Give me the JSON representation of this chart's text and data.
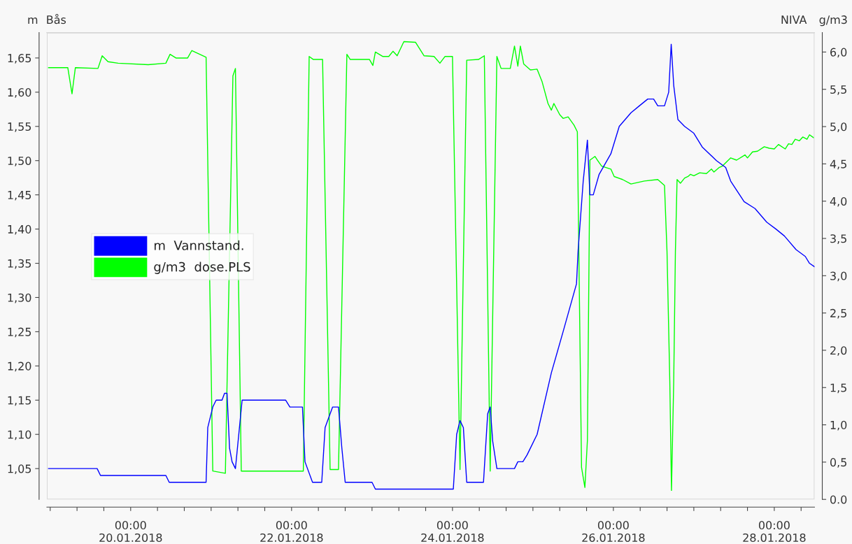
{
  "chart_data": {
    "type": "line",
    "ylabel": "m",
    "y2label": "g/m3",
    "annotations": [
      "Bås",
      "NIVA"
    ],
    "xlim": [
      "2018-01-18T23:00",
      "2018-01-28T12:00"
    ],
    "xticks": [
      {
        "value": "2018-01-19T00:00",
        "label": null
      },
      {
        "value": "2018-01-19T08:00",
        "label": null
      },
      {
        "value": "2018-01-19T16:00",
        "label": null
      },
      {
        "value": "2018-01-20T00:00",
        "label": "00:00\n20.01.2018"
      },
      {
        "value": "2018-01-20T08:00",
        "label": null
      },
      {
        "value": "2018-01-20T16:00",
        "label": null
      },
      {
        "value": "2018-01-21T00:00",
        "label": null
      },
      {
        "value": "2018-01-21T08:00",
        "label": null
      },
      {
        "value": "2018-01-21T16:00",
        "label": null
      },
      {
        "value": "2018-01-22T00:00",
        "label": "00:00\n22.01.2018"
      },
      {
        "value": "2018-01-22T08:00",
        "label": null
      },
      {
        "value": "2018-01-22T16:00",
        "label": null
      },
      {
        "value": "2018-01-23T00:00",
        "label": null
      },
      {
        "value": "2018-01-23T08:00",
        "label": null
      },
      {
        "value": "2018-01-23T16:00",
        "label": null
      },
      {
        "value": "2018-01-24T00:00",
        "label": "00:00\n24.01.2018"
      },
      {
        "value": "2018-01-24T08:00",
        "label": null
      },
      {
        "value": "2018-01-24T16:00",
        "label": null
      },
      {
        "value": "2018-01-25T00:00",
        "label": null
      },
      {
        "value": "2018-01-25T08:00",
        "label": null
      },
      {
        "value": "2018-01-25T16:00",
        "label": null
      },
      {
        "value": "2018-01-26T00:00",
        "label": "00:00\n26.01.2018"
      },
      {
        "value": "2018-01-26T08:00",
        "label": null
      },
      {
        "value": "2018-01-26T16:00",
        "label": null
      },
      {
        "value": "2018-01-27T00:00",
        "label": null
      },
      {
        "value": "2018-01-27T08:00",
        "label": null
      },
      {
        "value": "2018-01-27T16:00",
        "label": null
      },
      {
        "value": "2018-01-28T00:00",
        "label": "00:00\n28.01.2018"
      },
      {
        "value": "2018-01-28T08:00",
        "label": null
      }
    ],
    "ylim": [
      1.005,
      1.687
    ],
    "yticks": [
      {
        "value": 1.05,
        "label": "1,05"
      },
      {
        "value": 1.1,
        "label": "1,10"
      },
      {
        "value": 1.15,
        "label": "1,15"
      },
      {
        "value": 1.2,
        "label": "1,20"
      },
      {
        "value": 1.25,
        "label": "1,25"
      },
      {
        "value": 1.3,
        "label": "1,30"
      },
      {
        "value": 1.35,
        "label": "1,35"
      },
      {
        "value": 1.4,
        "label": "1,40"
      },
      {
        "value": 1.45,
        "label": "1,45"
      },
      {
        "value": 1.5,
        "label": "1,50"
      },
      {
        "value": 1.55,
        "label": "1,55"
      },
      {
        "value": 1.6,
        "label": "1,60"
      },
      {
        "value": 1.65,
        "label": "1,65"
      }
    ],
    "y2lim": [
      0,
      6.26
    ],
    "y2ticks": [
      {
        "value": 0,
        "label": "0.0"
      },
      {
        "value": 0.5,
        "label": "0,5"
      },
      {
        "value": 1.0,
        "label": "1,0"
      },
      {
        "value": 1.5,
        "label": "1,5"
      },
      {
        "value": 2.0,
        "label": "2,0"
      },
      {
        "value": 2.5,
        "label": "2,5"
      },
      {
        "value": 3.0,
        "label": "3,0"
      },
      {
        "value": 3.5,
        "label": "3,5"
      },
      {
        "value": 4.0,
        "label": "4,0"
      },
      {
        "value": 4.5,
        "label": "4,5"
      },
      {
        "value": 5.0,
        "label": "5,0"
      },
      {
        "value": 5.5,
        "label": "5,5"
      },
      {
        "value": 6.0,
        "label": "6,0"
      }
    ],
    "grid": false,
    "legend": "left",
    "marker": "none",
    "line_style": "solid",
    "series": [
      {
        "name": "m  Vannstand.",
        "color": "#0000ff",
        "axis": "y",
        "x": [
          "2018-01-18T23:30",
          "2018-01-19T14:00",
          "2018-01-19T15:00",
          "2018-01-20T10:30",
          "2018-01-20T11:30",
          "2018-01-20T22:30",
          "2018-01-20T23:00",
          "2018-01-21T00:30",
          "2018-01-21T01:30",
          "2018-01-21T03:15",
          "2018-01-21T04:00",
          "2018-01-21T04:45",
          "2018-01-21T05:30",
          "2018-01-21T06:15",
          "2018-01-21T07:15",
          "2018-01-21T08:15",
          "2018-01-21T09:15",
          "2018-01-21T22:15",
          "2018-01-21T23:30",
          "2018-01-22T03:15",
          "2018-01-22T04:00",
          "2018-01-22T06:15",
          "2018-01-22T09:00",
          "2018-01-22T10:00",
          "2018-01-22T11:30",
          "2018-01-22T12:15",
          "2018-01-22T14:00",
          "2018-01-22T15:00",
          "2018-01-22T16:00",
          "2018-01-23T00:00",
          "2018-01-23T01:00",
          "2018-01-24T00:15",
          "2018-01-24T01:15",
          "2018-01-24T02:15",
          "2018-01-24T03:15",
          "2018-01-24T04:15",
          "2018-01-24T09:15",
          "2018-01-24T10:30",
          "2018-01-24T11:15",
          "2018-01-24T12:00",
          "2018-01-24T13:15",
          "2018-01-24T18:30",
          "2018-01-24T19:30",
          "2018-01-24T21:00",
          "2018-01-24T22:15",
          "2018-01-25T01:15",
          "2018-01-25T05:30",
          "2018-01-25T09:00",
          "2018-01-25T13:00",
          "2018-01-25T13:30",
          "2018-01-25T15:00",
          "2018-01-25T16:15",
          "2018-01-25T17:00",
          "2018-01-25T18:00",
          "2018-01-25T19:45",
          "2018-01-25T23:15",
          "2018-01-26T01:45",
          "2018-01-26T05:15",
          "2018-01-26T07:45",
          "2018-01-26T10:15",
          "2018-01-26T12:00",
          "2018-01-26T13:15",
          "2018-01-26T15:15",
          "2018-01-26T16:30",
          "2018-01-26T17:15",
          "2018-01-26T18:00",
          "2018-01-26T19:15",
          "2018-01-26T21:15",
          "2018-01-27T00:00",
          "2018-01-27T02:30",
          "2018-01-27T06:45",
          "2018-01-27T09:30",
          "2018-01-27T11:00",
          "2018-01-27T15:00",
          "2018-01-27T18:15",
          "2018-01-27T21:45",
          "2018-01-28T00:30",
          "2018-01-28T03:00",
          "2018-01-28T06:30",
          "2018-01-28T09:15",
          "2018-01-28T10:30",
          "2018-01-28T12:00"
        ],
        "values": [
          1.05,
          1.05,
          1.04,
          1.04,
          1.03,
          1.03,
          1.11,
          1.14,
          1.15,
          1.15,
          1.16,
          1.16,
          1.08,
          1.06,
          1.05,
          1.1,
          1.15,
          1.15,
          1.14,
          1.14,
          1.06,
          1.03,
          1.03,
          1.11,
          1.13,
          1.14,
          1.14,
          1.08,
          1.03,
          1.03,
          1.02,
          1.02,
          1.1,
          1.12,
          1.11,
          1.03,
          1.03,
          1.13,
          1.14,
          1.09,
          1.05,
          1.05,
          1.06,
          1.06,
          1.07,
          1.1,
          1.19,
          1.25,
          1.32,
          1.37,
          1.47,
          1.53,
          1.45,
          1.45,
          1.48,
          1.51,
          1.55,
          1.57,
          1.58,
          1.59,
          1.59,
          1.58,
          1.58,
          1.6,
          1.67,
          1.61,
          1.56,
          1.55,
          1.54,
          1.52,
          1.5,
          1.49,
          1.47,
          1.44,
          1.43,
          1.41,
          1.4,
          1.39,
          1.37,
          1.36,
          1.35,
          1.345
        ]
      },
      {
        "name": "g/m3  dose.PLS",
        "color": "#00ff00",
        "axis": "y2",
        "x": [
          "2018-01-18T23:30",
          "2018-01-19T05:15",
          "2018-01-19T06:30",
          "2018-01-19T07:30",
          "2018-01-19T14:15",
          "2018-01-19T15:30",
          "2018-01-19T17:15",
          "2018-01-19T20:15",
          "2018-01-20T05:15",
          "2018-01-20T10:30",
          "2018-01-20T11:45",
          "2018-01-20T13:30",
          "2018-01-20T17:00",
          "2018-01-20T18:15",
          "2018-01-20T22:30",
          "2018-01-21T00:30",
          "2018-01-21T04:15",
          "2018-01-21T06:30",
          "2018-01-21T07:15",
          "2018-01-21T09:00",
          "2018-01-22T03:30",
          "2018-01-22T05:15",
          "2018-01-22T06:30",
          "2018-01-22T09:15",
          "2018-01-22T11:30",
          "2018-01-22T14:00",
          "2018-01-22T16:30",
          "2018-01-22T17:30",
          "2018-01-22T23:15",
          "2018-01-23T00:15",
          "2018-01-23T01:00",
          "2018-01-23T03:15",
          "2018-01-23T05:00",
          "2018-01-23T06:15",
          "2018-01-23T07:30",
          "2018-01-23T09:30",
          "2018-01-23T13:00",
          "2018-01-23T15:30",
          "2018-01-23T18:30",
          "2018-01-23T20:15",
          "2018-01-23T21:45",
          "2018-01-24T00:00",
          "2018-01-24T02:15",
          "2018-01-24T04:15",
          "2018-01-24T07:45",
          "2018-01-24T09:30",
          "2018-01-24T11:15",
          "2018-01-24T13:15",
          "2018-01-24T14:30",
          "2018-01-24T17:15",
          "2018-01-24T18:30",
          "2018-01-24T19:30",
          "2018-01-24T20:15",
          "2018-01-24T21:15",
          "2018-01-24T23:15",
          "2018-01-25T01:15",
          "2018-01-25T02:45",
          "2018-01-25T04:30",
          "2018-01-25T05:30",
          "2018-01-25T06:15",
          "2018-01-25T08:00",
          "2018-01-25T09:00",
          "2018-01-25T10:30",
          "2018-01-25T12:15",
          "2018-01-25T13:15",
          "2018-01-25T14:30",
          "2018-01-25T15:30",
          "2018-01-25T16:15",
          "2018-01-25T17:00",
          "2018-01-25T18:30",
          "2018-01-25T19:15",
          "2018-01-25T20:30",
          "2018-01-25T23:15",
          "2018-01-26T00:15",
          "2018-01-26T02:45",
          "2018-01-26T05:15",
          "2018-01-26T09:15",
          "2018-01-26T13:15",
          "2018-01-26T15:15",
          "2018-01-26T16:00",
          "2018-01-26T16:50",
          "2018-01-26T17:20",
          "2018-01-26T18:00",
          "2018-01-26T18:30",
          "2018-01-26T19:00",
          "2018-01-26T20:00",
          "2018-01-26T21:15",
          "2018-01-26T22:15",
          "2018-01-26T23:00",
          "2018-01-27T00:00",
          "2018-01-27T01:45",
          "2018-01-27T03:45",
          "2018-01-27T05:15",
          "2018-01-27T06:00",
          "2018-01-27T07:30",
          "2018-01-27T08:30",
          "2018-01-27T11:00",
          "2018-01-27T12:45",
          "2018-01-27T15:15",
          "2018-01-27T16:00",
          "2018-01-27T17:30",
          "2018-01-27T19:00",
          "2018-01-27T21:00",
          "2018-01-27T22:30",
          "2018-01-28T00:00",
          "2018-01-28T01:15",
          "2018-01-28T03:15",
          "2018-01-28T04:15",
          "2018-01-28T05:15",
          "2018-01-28T06:15",
          "2018-01-28T07:30",
          "2018-01-28T08:30",
          "2018-01-28T09:45",
          "2018-01-28T10:30",
          "2018-01-28T11:45"
        ],
        "values": [
          5.79,
          5.79,
          5.44,
          5.79,
          5.78,
          5.95,
          5.87,
          5.85,
          5.83,
          5.85,
          5.97,
          5.92,
          5.92,
          6.02,
          5.93,
          0.38,
          0.35,
          5.68,
          5.78,
          0.38,
          0.38,
          5.94,
          5.9,
          5.9,
          0.4,
          0.4,
          5.97,
          5.9,
          5.9,
          5.82,
          6.0,
          5.94,
          5.94,
          6.01,
          5.95,
          6.14,
          6.13,
          5.95,
          5.94,
          5.85,
          5.94,
          5.94,
          0.4,
          5.89,
          5.9,
          5.95,
          0.38,
          5.94,
          5.78,
          5.78,
          6.08,
          5.81,
          6.08,
          5.84,
          5.76,
          5.77,
          5.6,
          5.31,
          5.22,
          5.31,
          5.16,
          5.11,
          5.13,
          5.02,
          4.93,
          0.43,
          0.16,
          0.79,
          4.55,
          4.6,
          4.55,
          4.47,
          4.43,
          4.33,
          4.29,
          4.23,
          4.27,
          4.29,
          4.21,
          3.32,
          1.58,
          0.12,
          1.58,
          3.32,
          4.29,
          4.24,
          4.31,
          4.33,
          4.36,
          4.34,
          4.38,
          4.37,
          4.43,
          4.39,
          4.45,
          4.47,
          4.58,
          4.55,
          4.62,
          4.58,
          4.66,
          4.67,
          4.73,
          4.71,
          4.7,
          4.76,
          4.7,
          4.77,
          4.76,
          4.83,
          4.81,
          4.86,
          4.83,
          4.89,
          4.85
        ]
      }
    ]
  }
}
